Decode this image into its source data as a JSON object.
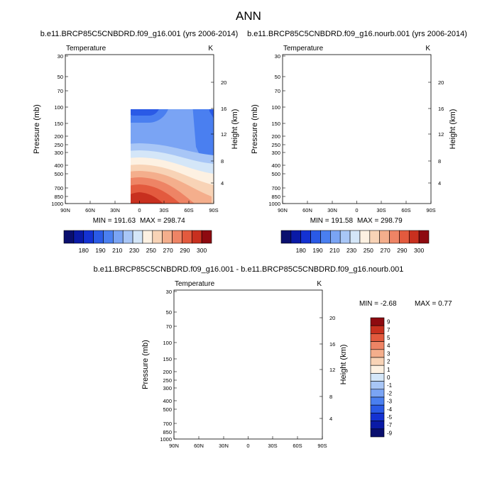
{
  "page_title": "ANN",
  "colorbar_temp": {
    "colors": [
      "#0a0f6e",
      "#0a1aa6",
      "#1432d2",
      "#2a5ae6",
      "#4a7ff0",
      "#7aa4f4",
      "#a8c6f6",
      "#d4e6f8",
      "#fdf1e2",
      "#f8d3b6",
      "#f4ae8c",
      "#ee8465",
      "#e35a3e",
      "#c8301f",
      "#8e0a10"
    ],
    "labels": [
      "180",
      "190",
      "210",
      "230",
      "250",
      "270",
      "290",
      "300"
    ]
  },
  "colorbar_diff": {
    "colors": [
      "#0a0f6e",
      "#0a1aa6",
      "#1432d2",
      "#2a5ae6",
      "#4a7ff0",
      "#7aa4f4",
      "#a8c6f6",
      "#d4e6f8",
      "#fdf1e2",
      "#f8d3b6",
      "#f4ae8c",
      "#ee8465",
      "#e35a3e",
      "#c8301f",
      "#8e0a10"
    ],
    "labels": [
      "9",
      "7",
      "5",
      "4",
      "3",
      "2",
      "1",
      "0",
      "-1",
      "-2",
      "-3",
      "-4",
      "-5",
      "-7",
      "-9"
    ]
  },
  "chart_data": [
    {
      "type": "contour",
      "title": "b.e11.BRCP85C5CNBDRD.f09_g16.001 (yrs 2006-2014)",
      "left_label": "Temperature",
      "right_label": "K",
      "xlabel": "",
      "ylabel": "Pressure (mb)",
      "y2label": "Height (km)",
      "x_ticks": [
        "90N",
        "60N",
        "30N",
        "0",
        "30S",
        "60S",
        "90S"
      ],
      "y_ticks": [
        "30",
        "50",
        "70",
        "100",
        "150",
        "200",
        "250",
        "300",
        "400",
        "500",
        "700",
        "850",
        "1000"
      ],
      "y2_ticks": [
        "20",
        "16",
        "12",
        "8",
        "4"
      ],
      "min_label": "MIN = 191.63",
      "max_label": "MAX = 298.74"
    },
    {
      "type": "contour",
      "title": "b.e11.BRCP85C5CNBDRD.f09_g16.nourb.001 (yrs 2006-2014)",
      "left_label": "Temperature",
      "right_label": "K",
      "xlabel": "",
      "ylabel": "Pressure (mb)",
      "y2label": "Height (km)",
      "x_ticks": [
        "90N",
        "60N",
        "30N",
        "0",
        "30S",
        "60S",
        "90S"
      ],
      "y_ticks": [
        "30",
        "50",
        "70",
        "100",
        "150",
        "200",
        "250",
        "300",
        "400",
        "500",
        "700",
        "850",
        "1000"
      ],
      "y2_ticks": [
        "20",
        "16",
        "12",
        "8",
        "4"
      ],
      "min_label": "MIN = 191.58",
      "max_label": "MAX = 298.79"
    },
    {
      "type": "contour",
      "title": "b.e11.BRCP85C5CNBDRD.f09_g16.001 - b.e11.BRCP85C5CNBDRD.f09_g16.nourb.001",
      "left_label": "Temperature",
      "right_label": "K",
      "xlabel": "",
      "ylabel": "Pressure (mb)",
      "y2label": "Height (km)",
      "x_ticks": [
        "90N",
        "60N",
        "30N",
        "0",
        "30S",
        "60S",
        "90S"
      ],
      "y_ticks": [
        "30",
        "50",
        "70",
        "100",
        "150",
        "200",
        "250",
        "300",
        "400",
        "500",
        "700",
        "850",
        "1000"
      ],
      "y2_ticks": [
        "20",
        "16",
        "12",
        "8",
        "4"
      ],
      "min_label": "MIN =  -2.68",
      "max_label": "MAX =   0.77"
    }
  ]
}
